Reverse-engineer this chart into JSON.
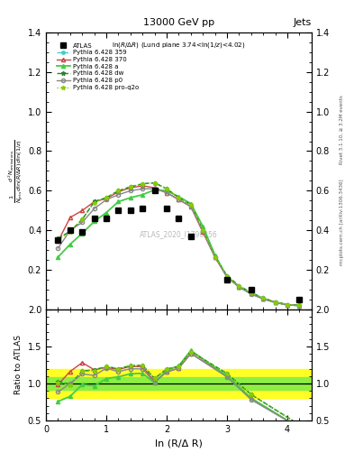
{
  "title_top": "13000 GeV pp",
  "title_right": "Jets",
  "plot_label": "ln(R/Δ R) (Lund plane 3.74<ln(1/z)<4.02)",
  "watermark": "ATLAS_2020_I1790256",
  "right_label_top": "Rivet 3.1.10, ≥ 3.2M events",
  "right_label_bot": "mcplots.cern.ch [arXiv:1306.3436]",
  "xlabel": "ln (R/Δ R)",
  "ylabel_main": "$\\frac{1}{N_\\mathrm{jets}}\\frac{d^2 N_\\mathrm{emissions}}{d\\ln(R/\\Delta R)\\,d\\ln(1/z)}$",
  "ylabel_ratio": "Ratio to ATLAS",
  "x_atlas": [
    0.2,
    0.4,
    0.6,
    0.8,
    1.0,
    1.2,
    1.4,
    1.6,
    1.8,
    2.0,
    2.2,
    2.4,
    3.0,
    3.4,
    4.2
  ],
  "y_atlas": [
    0.35,
    0.4,
    0.39,
    0.46,
    0.46,
    0.5,
    0.5,
    0.51,
    0.6,
    0.51,
    0.46,
    0.37,
    0.15,
    0.1,
    0.05
  ],
  "x_mc": [
    0.2,
    0.4,
    0.6,
    0.8,
    1.0,
    1.2,
    1.4,
    1.6,
    1.8,
    2.0,
    2.2,
    2.4,
    2.6,
    2.8,
    3.0,
    3.2,
    3.4,
    3.6,
    3.8,
    4.0,
    4.2
  ],
  "y_359": [
    0.355,
    0.395,
    0.455,
    0.545,
    0.565,
    0.6,
    0.62,
    0.635,
    0.64,
    0.61,
    0.565,
    0.53,
    0.4,
    0.265,
    0.17,
    0.12,
    0.085,
    0.058,
    0.038,
    0.025,
    0.022
  ],
  "y_370": [
    0.345,
    0.465,
    0.5,
    0.545,
    0.56,
    0.595,
    0.615,
    0.625,
    0.615,
    0.59,
    0.555,
    0.52,
    0.39,
    0.265,
    0.165,
    0.115,
    0.08,
    0.055,
    0.036,
    0.024,
    0.02
  ],
  "y_a": [
    0.265,
    0.33,
    0.385,
    0.445,
    0.49,
    0.545,
    0.565,
    0.58,
    0.605,
    0.6,
    0.57,
    0.535,
    0.42,
    0.275,
    0.165,
    0.115,
    0.08,
    0.055,
    0.036,
    0.024,
    0.02
  ],
  "y_dw": [
    0.36,
    0.395,
    0.455,
    0.545,
    0.565,
    0.6,
    0.62,
    0.635,
    0.64,
    0.61,
    0.565,
    0.53,
    0.4,
    0.265,
    0.17,
    0.12,
    0.085,
    0.058,
    0.038,
    0.025,
    0.022
  ],
  "y_p0": [
    0.31,
    0.4,
    0.44,
    0.51,
    0.555,
    0.58,
    0.6,
    0.61,
    0.61,
    0.59,
    0.555,
    0.52,
    0.395,
    0.265,
    0.163,
    0.113,
    0.078,
    0.053,
    0.035,
    0.023,
    0.02
  ],
  "y_proq2o": [
    0.355,
    0.39,
    0.455,
    0.54,
    0.565,
    0.6,
    0.62,
    0.635,
    0.64,
    0.61,
    0.565,
    0.53,
    0.4,
    0.265,
    0.17,
    0.12,
    0.085,
    0.058,
    0.038,
    0.025,
    0.022
  ],
  "color_359": "#44CCCC",
  "color_370": "#CC4444",
  "color_a": "#44CC44",
  "color_dw": "#228822",
  "color_p0": "#888888",
  "color_proq2o": "#88CC00",
  "green_band": 0.08,
  "yellow_band": 0.2,
  "xlim": [
    0.0,
    4.4
  ],
  "ylim_main": [
    0.0,
    1.4
  ],
  "ylim_ratio": [
    0.5,
    2.0
  ],
  "xticks": [
    0,
    1,
    2,
    3,
    4
  ],
  "yticks_main": [
    0.2,
    0.4,
    0.6,
    0.8,
    1.0,
    1.2,
    1.4
  ],
  "yticks_ratio": [
    0.5,
    1.0,
    1.5,
    2.0
  ]
}
